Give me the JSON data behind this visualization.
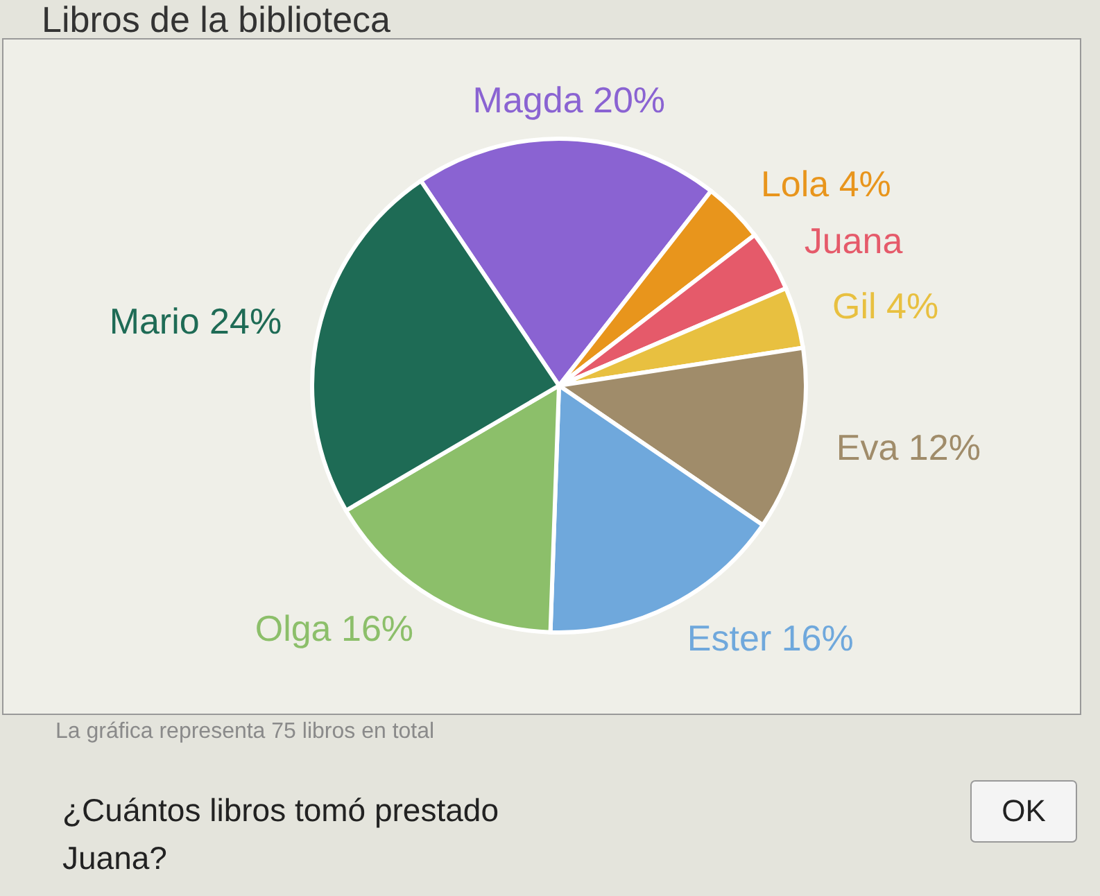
{
  "chart_data": {
    "type": "pie",
    "title": "Libros de la biblioteca",
    "categories": [
      "Magda",
      "Lola",
      "Juana",
      "Gil",
      "Eva",
      "Ester",
      "Olga",
      "Mario"
    ],
    "values": [
      20,
      4,
      4,
      4,
      12,
      16,
      16,
      24
    ],
    "value_labels": [
      "20%",
      "4%",
      null,
      "4%",
      "12%",
      "16%",
      "16%",
      "24%"
    ],
    "colors": [
      "#8a63d2",
      "#e8951c",
      "#e55a6a",
      "#e8c040",
      "#a08c6a",
      "#6fa8dc",
      "#8cbf6a",
      "#1e6b55"
    ],
    "legend": false,
    "annotations": [
      "La gráfica representa 75 libros en total",
      "¿Cuántos libros tomó prestado Juana?",
      "OK"
    ]
  }
}
